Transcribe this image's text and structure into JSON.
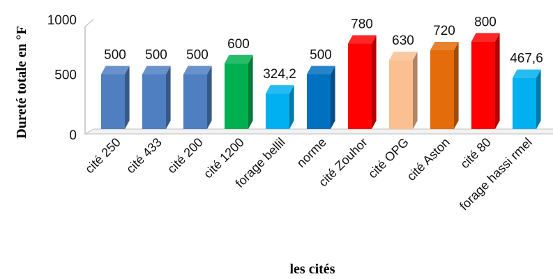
{
  "chart_data": {
    "type": "bar",
    "title": "",
    "xlabel": "les cités",
    "ylabel": "Dureté totale en °F",
    "ylim": [
      0,
      1000
    ],
    "yticks": [
      "0",
      "500",
      "1000"
    ],
    "grid": false,
    "legend": "none",
    "categories": [
      "cité  250",
      "cité 433",
      "cité 200",
      "cité 1200",
      "forage bellil",
      "norme",
      "cité Zouhor",
      "cité OPG",
      "cité Aston",
      "cité 80",
      "forage hassi rmel"
    ],
    "values": [
      500,
      500,
      500,
      600,
      324.2,
      500,
      780,
      630,
      720,
      800,
      467.6
    ],
    "value_labels": [
      "500",
      "500",
      "500",
      "600",
      "324,2",
      "500",
      "780",
      "630",
      "720",
      "800",
      "467,6"
    ],
    "colors": [
      "#4f7fc1",
      "#4f7fc1",
      "#4f7fc1",
      "#00b050",
      "#00b0f0",
      "#0070c0",
      "#ff0000",
      "#fac090",
      "#e46c0a",
      "#ff0000",
      "#00b0f0"
    ]
  }
}
